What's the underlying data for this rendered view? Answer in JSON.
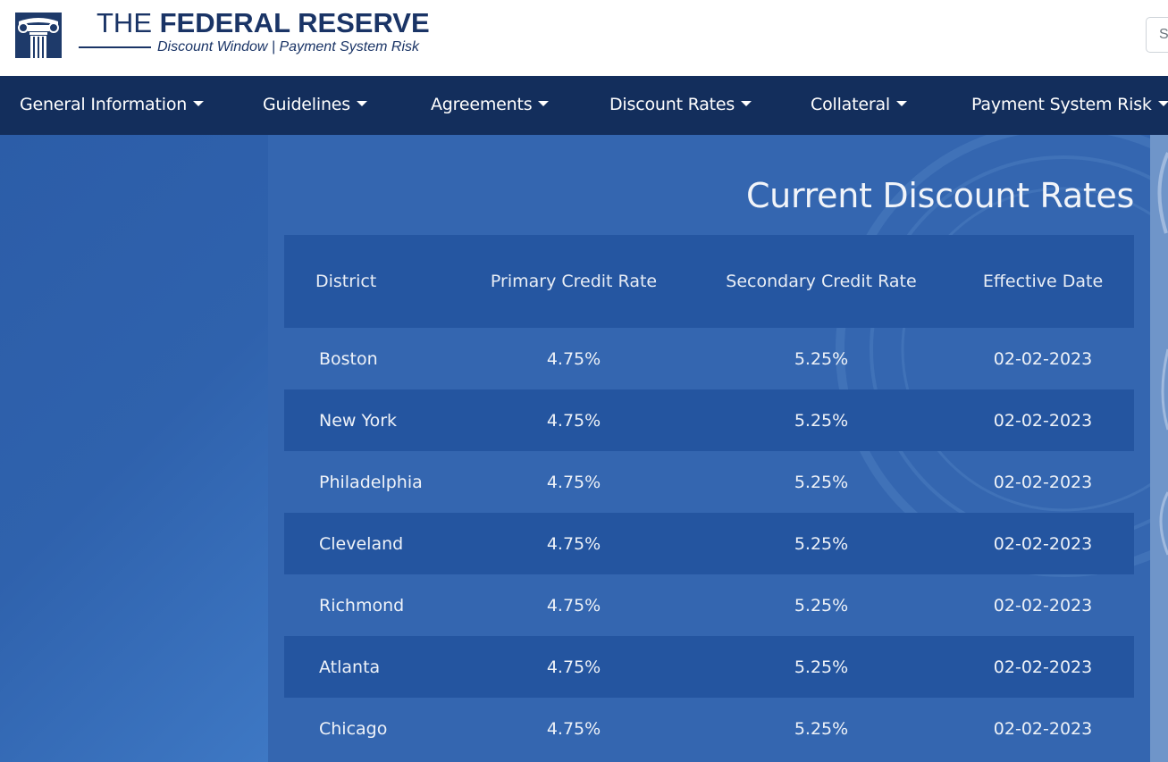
{
  "header": {
    "brand_light": "THE ",
    "brand_bold": "FEDERAL RESERVE",
    "subtitle": "Discount Window | Payment System Risk",
    "search_placeholder": "S"
  },
  "nav": {
    "items": [
      {
        "label": "General Information"
      },
      {
        "label": "Guidelines"
      },
      {
        "label": "Agreements"
      },
      {
        "label": "Discount Rates"
      },
      {
        "label": "Collateral"
      },
      {
        "label": "Payment System Risk"
      }
    ]
  },
  "page_title": "Current Discount Rates",
  "table": {
    "columns": [
      "District",
      "Primary Credit Rate",
      "Secondary Credit Rate",
      "Effective Date"
    ],
    "rows": [
      {
        "district": "Boston",
        "primary": "4.75%",
        "secondary": "5.25%",
        "date": "02-02-2023"
      },
      {
        "district": "New York",
        "primary": "4.75%",
        "secondary": "5.25%",
        "date": "02-02-2023"
      },
      {
        "district": "Philadelphia",
        "primary": "4.75%",
        "secondary": "5.25%",
        "date": "02-02-2023"
      },
      {
        "district": "Cleveland",
        "primary": "4.75%",
        "secondary": "5.25%",
        "date": "02-02-2023"
      },
      {
        "district": "Richmond",
        "primary": "4.75%",
        "secondary": "5.25%",
        "date": "02-02-2023"
      },
      {
        "district": "Atlanta",
        "primary": "4.75%",
        "secondary": "5.25%",
        "date": "02-02-2023"
      },
      {
        "district": "Chicago",
        "primary": "4.75%",
        "secondary": "5.25%",
        "date": "02-02-2023"
      }
    ]
  },
  "colors": {
    "nav_bg": "#132e5c",
    "brand": "#1a3466",
    "panel": "#3466b0",
    "row_alt": "#2455a0"
  },
  "icons": {
    "logo": "column-capital-icon",
    "dropdown": "caret-down-icon",
    "background": "federal-reserve-seal-watermark"
  }
}
